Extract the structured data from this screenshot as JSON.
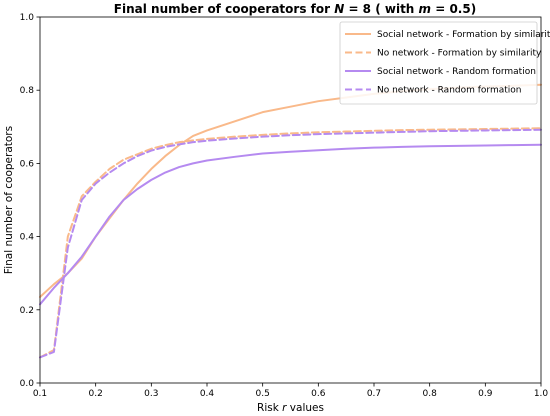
{
  "chart_data": {
    "type": "line",
    "title_prefix": "Final number of cooperators for ",
    "title_var": "N",
    "title_mid": " = 8 ( with ",
    "title_var2": "m",
    "title_suffix": " = 0.5)",
    "xlabel_prefix": "Risk ",
    "xlabel_var": "r",
    "xlabel_suffix": " values",
    "ylabel": "Final number of cooperators",
    "xlim": [
      0.1,
      1.0
    ],
    "ylim": [
      0.0,
      1.0
    ],
    "xticks": [
      "0.1",
      "0.2",
      "0.3",
      "0.4",
      "0.5",
      "0.6",
      "0.7",
      "0.8",
      "0.9",
      "1.0"
    ],
    "yticks": [
      "0.0",
      "0.2",
      "0.4",
      "0.6",
      "0.8",
      "1.0"
    ],
    "legend_position": "top-right",
    "x": [
      0.1,
      0.125,
      0.15,
      0.175,
      0.2,
      0.225,
      0.25,
      0.275,
      0.3,
      0.325,
      0.35,
      0.375,
      0.4,
      0.45,
      0.5,
      0.55,
      0.6,
      0.65,
      0.7,
      0.75,
      0.8,
      0.85,
      0.9,
      0.95,
      1.0
    ],
    "series": [
      {
        "name": "Social network - Formation by similarity",
        "color": "#f9b98a",
        "dash": "solid",
        "values": [
          0.235,
          0.27,
          0.3,
          0.34,
          0.4,
          0.45,
          0.5,
          0.545,
          0.585,
          0.62,
          0.65,
          0.675,
          0.69,
          0.715,
          0.74,
          0.755,
          0.77,
          0.78,
          0.79,
          0.797,
          0.803,
          0.807,
          0.81,
          0.812,
          0.815
        ]
      },
      {
        "name": "No network - Formation by similarity",
        "color": "#f9b98a",
        "dash": "dashed",
        "values": [
          0.07,
          0.09,
          0.4,
          0.51,
          0.55,
          0.585,
          0.61,
          0.625,
          0.64,
          0.65,
          0.658,
          0.663,
          0.667,
          0.673,
          0.678,
          0.682,
          0.685,
          0.687,
          0.689,
          0.691,
          0.692,
          0.693,
          0.694,
          0.695,
          0.696
        ]
      },
      {
        "name": "Social network - Random formation",
        "color": "#b58af0",
        "dash": "solid",
        "values": [
          0.215,
          0.26,
          0.3,
          0.345,
          0.4,
          0.455,
          0.5,
          0.53,
          0.555,
          0.575,
          0.59,
          0.6,
          0.608,
          0.618,
          0.627,
          0.632,
          0.636,
          0.64,
          0.643,
          0.645,
          0.647,
          0.648,
          0.649,
          0.65,
          0.651
        ]
      },
      {
        "name": "No network - Random formation",
        "color": "#b58af0",
        "dash": "dashed",
        "values": [
          0.07,
          0.085,
          0.37,
          0.5,
          0.545,
          0.575,
          0.6,
          0.62,
          0.635,
          0.645,
          0.652,
          0.658,
          0.662,
          0.668,
          0.673,
          0.677,
          0.68,
          0.682,
          0.684,
          0.686,
          0.688,
          0.689,
          0.69,
          0.691,
          0.692
        ]
      }
    ]
  }
}
